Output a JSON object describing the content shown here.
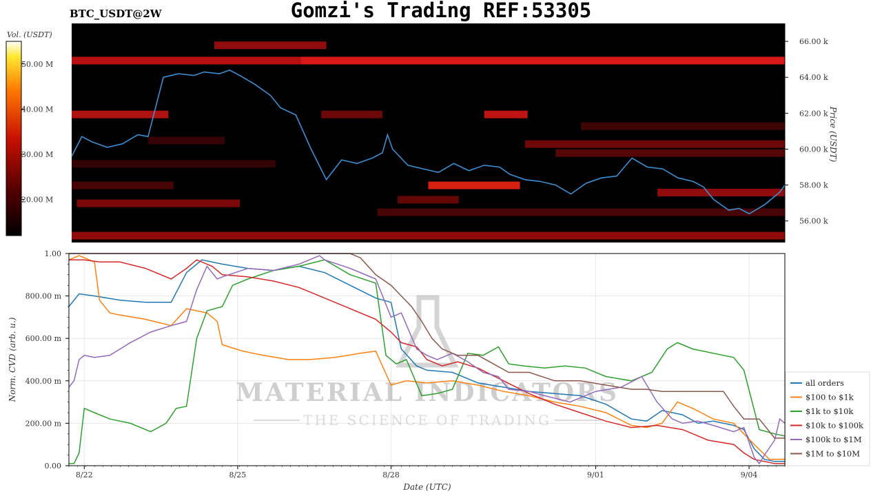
{
  "header": {
    "title": "Gomzi's Trading REF:53305",
    "pair": "BTC_USDT@2W"
  },
  "colorbar": {
    "label": "Vol. (USDT)",
    "ticks": [
      "50.00 M",
      "40.00 M",
      "30.00 M",
      "20.00 M"
    ],
    "tick_values": [
      50,
      40,
      30,
      20
    ],
    "range": [
      12,
      55
    ]
  },
  "heatmap_panel": {
    "ylabel": "Price (USDT)",
    "y_ticks": [
      "66.00 k",
      "64.00 k",
      "62.00 k",
      "60.00 k",
      "58.00 k",
      "56.00 k"
    ],
    "y_tick_values": [
      66,
      64,
      62,
      60,
      58,
      56
    ],
    "y_range": [
      54.8,
      67.0
    ],
    "line_color": "#3b8fd4"
  },
  "watermark": {
    "line1": "MATERIAL INDICATORS",
    "line2": "THE SCIENCE OF TRADING"
  },
  "chart_data": [
    {
      "type": "heatmap",
      "title": "BTC_USDT@2W",
      "ylabel": "Price (USDT)",
      "xlabel": "",
      "ylim": [
        54.8,
        67.0
      ],
      "x_range": [
        "8/21",
        "9/04"
      ],
      "price_series": {
        "x": [
          0,
          0.2,
          0.4,
          0.7,
          1.0,
          1.3,
          1.5,
          1.8,
          2.1,
          2.4,
          2.6,
          2.9,
          3.1,
          3.3,
          3.6,
          3.9,
          4.1,
          4.4,
          4.7,
          5.0,
          5.3,
          5.6,
          5.9,
          6.1,
          6.2,
          6.3,
          6.6,
          6.9,
          7.2,
          7.5,
          7.8,
          8.1,
          8.4,
          8.6,
          8.9,
          9.2,
          9.5,
          9.8,
          10.1,
          10.4,
          10.7,
          11.0,
          11.3,
          11.6,
          11.9,
          12.2,
          12.4,
          12.6,
          12.9,
          13.1,
          13.3,
          13.6,
          13.9,
          14.0
        ],
        "y": [
          59.6,
          60.7,
          60.4,
          60.1,
          60.3,
          60.8,
          60.7,
          64.0,
          64.2,
          64.1,
          64.3,
          64.2,
          64.4,
          64.1,
          63.6,
          63.0,
          62.3,
          61.9,
          60.0,
          58.3,
          59.4,
          59.2,
          59.5,
          59.8,
          60.8,
          60.0,
          59.1,
          58.9,
          58.7,
          59.2,
          58.8,
          59.1,
          59.0,
          58.6,
          58.3,
          58.2,
          58.0,
          57.5,
          58.1,
          58.4,
          58.5,
          59.5,
          59.0,
          58.9,
          58.4,
          58.2,
          57.9,
          57.2,
          56.6,
          56.7,
          56.4,
          56.9,
          57.6,
          58.0
        ],
        "name": ""
      }
    },
    {
      "type": "line",
      "title": "",
      "xlabel": "Date (UTC)",
      "ylabel": "Norm. CVD (arb. u.)",
      "ylim": [
        0,
        1
      ],
      "y_ticks": [
        "1.00",
        "800.00 m",
        "600.00 m",
        "400.00 m",
        "200.00 m",
        "0.00"
      ],
      "y_tick_values": [
        1,
        0.8,
        0.6,
        0.4,
        0.2,
        0
      ],
      "x_ticks": [
        "8/22",
        "8/25",
        "8/28",
        "9/01",
        "9/04"
      ],
      "x_tick_values": [
        0.3,
        3.3,
        6.3,
        10.3,
        13.3
      ],
      "x_range": [
        0,
        14
      ],
      "legend_position": "right",
      "series": [
        {
          "name": "all orders",
          "color": "#1f77b4",
          "x": [
            0,
            0.2,
            0.5,
            1.0,
            1.5,
            2.0,
            2.3,
            2.6,
            3.0,
            3.5,
            4.0,
            4.5,
            5.0,
            5.5,
            6.0,
            6.3,
            6.5,
            6.8,
            7.0,
            7.5,
            8.0,
            8.5,
            9.0,
            9.5,
            10.0,
            10.5,
            11.0,
            11.3,
            11.6,
            12.0,
            12.3,
            12.6,
            13.0,
            13.2,
            13.4,
            13.6,
            13.8,
            14.0
          ],
          "y": [
            0.75,
            0.81,
            0.8,
            0.78,
            0.77,
            0.77,
            0.91,
            0.97,
            0.95,
            0.93,
            0.92,
            0.94,
            0.91,
            0.85,
            0.79,
            0.77,
            0.55,
            0.47,
            0.45,
            0.44,
            0.39,
            0.37,
            0.35,
            0.34,
            0.33,
            0.29,
            0.22,
            0.21,
            0.26,
            0.24,
            0.2,
            0.21,
            0.19,
            0.17,
            0.08,
            0.03,
            0.02,
            0.02
          ]
        },
        {
          "name": "$100 to $1k",
          "color": "#ff7f0e",
          "x": [
            0,
            0.2,
            0.5,
            0.6,
            0.8,
            1.0,
            1.5,
            2.0,
            2.3,
            2.7,
            2.9,
            3.0,
            3.4,
            3.8,
            4.3,
            4.7,
            5.2,
            5.7,
            6.0,
            6.3,
            6.6,
            7.0,
            7.5,
            8.0,
            8.5,
            9.0,
            9.5,
            10.0,
            10.5,
            11.0,
            11.3,
            11.6,
            11.9,
            12.2,
            12.6,
            13.0,
            13.2,
            13.4,
            13.7,
            14.0
          ],
          "y": [
            0.97,
            0.99,
            0.96,
            0.78,
            0.72,
            0.71,
            0.69,
            0.66,
            0.74,
            0.72,
            0.68,
            0.57,
            0.54,
            0.52,
            0.5,
            0.5,
            0.51,
            0.53,
            0.54,
            0.38,
            0.4,
            0.39,
            0.4,
            0.38,
            0.35,
            0.33,
            0.3,
            0.28,
            0.25,
            0.19,
            0.18,
            0.2,
            0.3,
            0.27,
            0.22,
            0.2,
            0.15,
            0.1,
            0.03,
            0.03
          ]
        },
        {
          "name": "$1k to $10k",
          "color": "#2ca02c",
          "x": [
            0,
            0.1,
            0.2,
            0.3,
            0.5,
            0.8,
            1.2,
            1.6,
            1.9,
            2.1,
            2.3,
            2.5,
            2.7,
            3.0,
            3.2,
            3.5,
            4.0,
            4.5,
            5.0,
            5.5,
            6.0,
            6.2,
            6.4,
            6.6,
            6.9,
            7.2,
            7.5,
            7.8,
            8.1,
            8.4,
            8.6,
            8.9,
            9.3,
            9.7,
            10.1,
            10.5,
            11.0,
            11.4,
            11.7,
            11.9,
            12.2,
            12.6,
            13.0,
            13.2,
            13.5,
            13.8,
            14.0
          ],
          "y": [
            0.01,
            0.01,
            0.06,
            0.27,
            0.25,
            0.22,
            0.2,
            0.16,
            0.2,
            0.27,
            0.28,
            0.6,
            0.73,
            0.75,
            0.85,
            0.88,
            0.92,
            0.94,
            0.97,
            0.9,
            0.86,
            0.52,
            0.48,
            0.5,
            0.33,
            0.34,
            0.36,
            0.53,
            0.52,
            0.56,
            0.48,
            0.47,
            0.46,
            0.47,
            0.46,
            0.42,
            0.4,
            0.44,
            0.55,
            0.58,
            0.55,
            0.53,
            0.51,
            0.45,
            0.17,
            0.15,
            0.14
          ]
        },
        {
          "name": "$10k to $100k",
          "color": "#d62728",
          "x": [
            0,
            0.3,
            0.6,
            1.0,
            1.5,
            2.0,
            2.3,
            2.5,
            2.8,
            3.0,
            3.5,
            4.0,
            4.5,
            5.0,
            5.5,
            6.0,
            6.3,
            6.5,
            6.8,
            7.0,
            7.3,
            7.6,
            8.0,
            8.5,
            9.0,
            9.5,
            10.0,
            10.5,
            11.0,
            11.5,
            12.0,
            12.5,
            13.0,
            13.2,
            13.4,
            13.6,
            13.8,
            14.0
          ],
          "y": [
            0.97,
            0.97,
            0.96,
            0.96,
            0.93,
            0.88,
            0.93,
            0.97,
            0.94,
            0.9,
            0.89,
            0.87,
            0.84,
            0.79,
            0.74,
            0.69,
            0.63,
            0.58,
            0.56,
            0.5,
            0.47,
            0.49,
            0.46,
            0.4,
            0.34,
            0.29,
            0.25,
            0.21,
            0.18,
            0.19,
            0.17,
            0.12,
            0.1,
            0.06,
            0.03,
            0.02,
            0.01,
            0.01
          ]
        },
        {
          "name": "$100k to $1M",
          "color": "#9467bd",
          "x": [
            0,
            0.1,
            0.2,
            0.3,
            0.5,
            0.8,
            1.2,
            1.6,
            2.0,
            2.3,
            2.5,
            2.7,
            2.9,
            3.0,
            3.5,
            4.0,
            4.5,
            4.9,
            5.0,
            5.5,
            6.0,
            6.3,
            6.5,
            6.8,
            7.0,
            7.2,
            7.5,
            7.8,
            8.1,
            8.4,
            8.6,
            9.0,
            9.3,
            9.8,
            10.3,
            10.8,
            11.2,
            11.5,
            11.8,
            12.0,
            12.3,
            12.6,
            13.0,
            13.2,
            13.4,
            13.5,
            13.6,
            13.8,
            13.9,
            14.0
          ],
          "y": [
            0.37,
            0.4,
            0.5,
            0.52,
            0.51,
            0.52,
            0.58,
            0.63,
            0.66,
            0.68,
            0.83,
            0.94,
            0.88,
            0.89,
            0.93,
            0.92,
            0.95,
            0.99,
            0.97,
            0.93,
            0.88,
            0.7,
            0.72,
            0.55,
            0.52,
            0.5,
            0.53,
            0.49,
            0.44,
            0.42,
            0.36,
            0.35,
            0.33,
            0.3,
            0.35,
            0.37,
            0.42,
            0.3,
            0.22,
            0.2,
            0.21,
            0.19,
            0.16,
            0.18,
            0.04,
            0.01,
            0.05,
            0.12,
            0.22,
            0.2
          ]
        },
        {
          "name": "$1M to $10M",
          "color": "#8c564b",
          "x": [
            0,
            0.5,
            1.0,
            1.5,
            2.0,
            2.2,
            2.4,
            2.6,
            3.0,
            3.5,
            4.0,
            4.5,
            5.0,
            5.5,
            5.7,
            6.0,
            6.3,
            6.5,
            6.7,
            6.9,
            7.1,
            7.3,
            7.6,
            8.0,
            8.3,
            8.6,
            9.0,
            9.5,
            10.0,
            10.5,
            11.0,
            11.3,
            11.6,
            12.0,
            12.4,
            12.8,
            13.0,
            13.2,
            13.5,
            13.8,
            14.0
          ],
          "y": [
            1.0,
            1.0,
            1.0,
            1.0,
            1.0,
            1.0,
            1.0,
            1.0,
            1.0,
            1.0,
            1.0,
            1.0,
            1.0,
            1.0,
            0.98,
            0.9,
            0.85,
            0.8,
            0.75,
            0.68,
            0.6,
            0.55,
            0.52,
            0.52,
            0.48,
            0.44,
            0.44,
            0.4,
            0.4,
            0.38,
            0.36,
            0.36,
            0.35,
            0.35,
            0.35,
            0.35,
            0.28,
            0.22,
            0.22,
            0.13,
            0.13
          ]
        }
      ]
    }
  ]
}
